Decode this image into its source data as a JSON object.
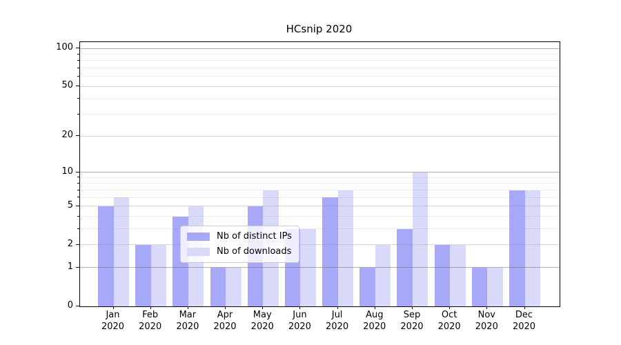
{
  "chart_data": {
    "type": "bar",
    "title": "HCsnip 2020",
    "categories": [
      "Jan",
      "Feb",
      "Mar",
      "Apr",
      "May",
      "Jun",
      "Jul",
      "Aug",
      "Sep",
      "Oct",
      "Nov",
      "Dec"
    ],
    "category_year_suffix": "2020",
    "series": [
      {
        "name": "Nb of distinct IPs",
        "color": "#a8a8f8",
        "values": [
          5,
          2,
          4,
          1,
          5,
          3,
          6,
          1,
          3,
          2,
          1,
          7
        ]
      },
      {
        "name": "Nb of downloads",
        "color": "#d9d9fa",
        "values": [
          6,
          2,
          5,
          1,
          7,
          3,
          7,
          2,
          10,
          2,
          1,
          7
        ]
      }
    ],
    "y_axis": {
      "scale": "log1p",
      "tick_labels": [
        0,
        1,
        2,
        5,
        10,
        20,
        50,
        100
      ],
      "major_gridlines": [
        1,
        10,
        100
      ],
      "sub_gridlines": [
        2,
        5,
        20,
        50
      ],
      "minor_gridlines": [
        3,
        4,
        6,
        7,
        8,
        9,
        30,
        40,
        60,
        70,
        80,
        90
      ],
      "max": 112
    },
    "legend_position": "lower center",
    "grid": true
  }
}
